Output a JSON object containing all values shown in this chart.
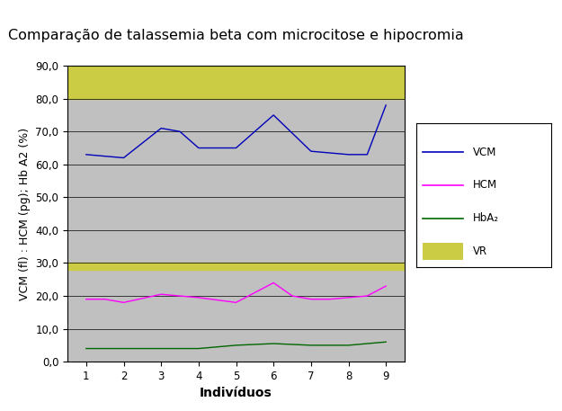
{
  "title": "Comparação de talassemia beta com microcitose e hipocromia",
  "xlabel": "Indivíduos",
  "ylabel": "VCM (fl) : HCM (pg); Hb A2 (%)",
  "vcm_x": [
    1,
    2,
    3,
    3.5,
    4,
    5,
    6,
    7,
    8,
    8.5,
    9
  ],
  "vcm_y": [
    63,
    62,
    71,
    70,
    65,
    65,
    75,
    64,
    63,
    63,
    78
  ],
  "hcm_x": [
    1,
    1.5,
    2,
    3,
    3.5,
    4,
    5,
    6,
    6.5,
    7,
    7.5,
    8,
    8.5,
    9
  ],
  "hcm_y": [
    19,
    19,
    18,
    20.5,
    20,
    19.5,
    18,
    24,
    20,
    19,
    19,
    19.5,
    20,
    23
  ],
  "hba2_x": [
    1,
    2,
    3,
    4,
    5,
    6,
    7,
    8,
    9
  ],
  "hba2_y": [
    4,
    4,
    4,
    4,
    5,
    5.5,
    5,
    5,
    6
  ],
  "vr_bands": [
    {
      "ymin": 80,
      "ymax": 90
    },
    {
      "ymin": 28,
      "ymax": 30
    }
  ],
  "ylim": [
    0,
    90
  ],
  "xlim": [
    0.5,
    9.5
  ],
  "yticks": [
    0.0,
    10.0,
    20.0,
    30.0,
    40.0,
    50.0,
    60.0,
    70.0,
    80.0,
    90.0
  ],
  "ytick_labels": [
    "0,0",
    "10,0",
    "20,0",
    "30,0",
    "40,0",
    "50,0",
    "60,0",
    "70,0",
    "80,0",
    "90,0"
  ],
  "xticks": [
    1,
    2,
    3,
    4,
    5,
    6,
    7,
    8,
    9
  ],
  "vcm_color": "#0000bb",
  "hcm_color": "#ff00ff",
  "hba2_color": "#006600",
  "vr_color": "#cccc44",
  "bg_plot_color": "#c0c0c0",
  "bg_fig_color": "#ffffff",
  "title_fontsize": 11.5,
  "axis_label_fontsize": 9,
  "xlabel_fontsize": 10,
  "tick_fontsize": 8.5,
  "legend_fontsize": 8.5
}
